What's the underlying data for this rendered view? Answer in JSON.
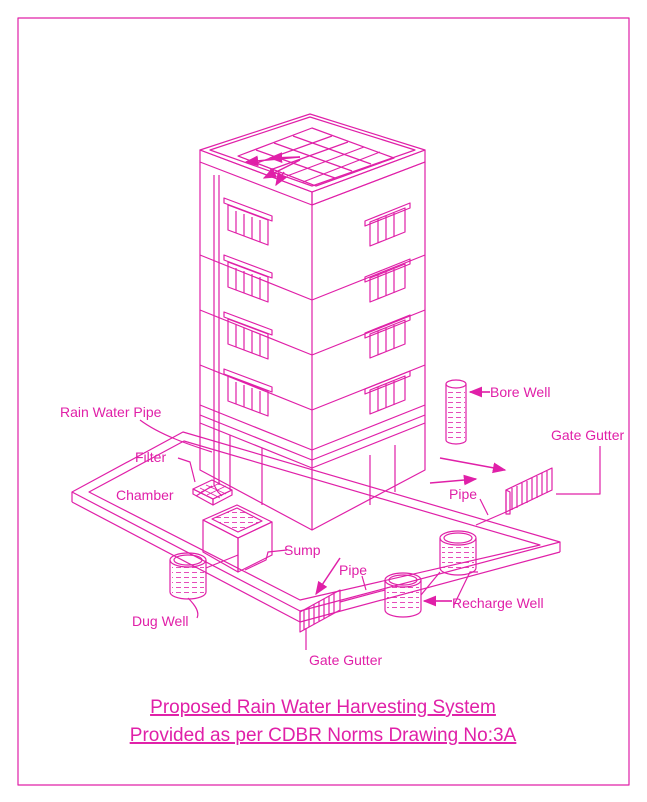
{
  "colors": {
    "line": "#e020a8",
    "background": "#ffffff"
  },
  "labels": {
    "rain_water_pipe": "Rain Water Pipe",
    "filter": "Filter",
    "chamber": "Chamber",
    "sump": "Sump",
    "dug_well": "Dug Well",
    "pipe_left": "Pipe",
    "pipe_right": "Pipe",
    "gate_gutter_bottom": "Gate Gutter",
    "gate_gutter_right": "Gate Gutter",
    "bore_well": "Bore Well",
    "recharge_well": "Recharge Well"
  },
  "title": {
    "line1": "Proposed Rain Water Harvesting System",
    "line2": "Provided as per CDBR Norms Drawing No:3A"
  }
}
